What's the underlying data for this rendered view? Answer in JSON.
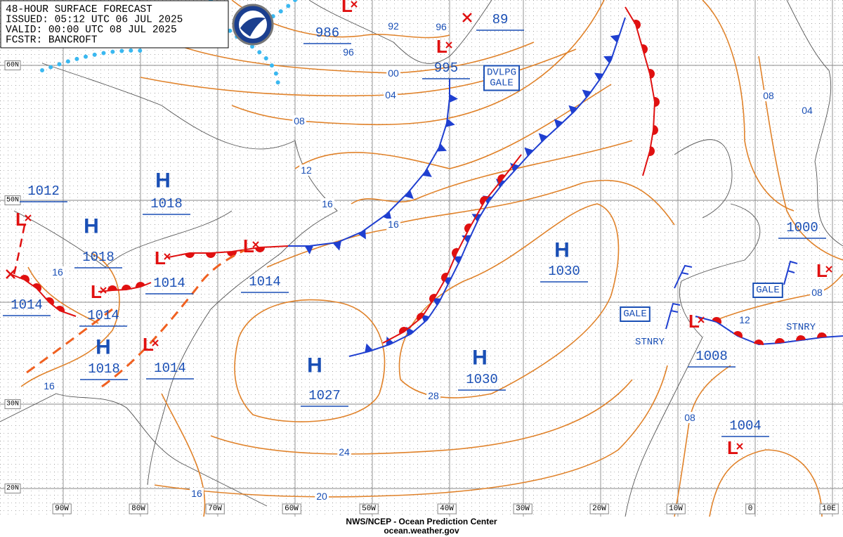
{
  "header": {
    "lines": [
      "48-HOUR SURFACE FORECAST",
      "ISSUED: 05:12 UTC 06 JUL 2025",
      "VALID:  00:00 UTC 08 JUL 2025",
      "FCSTR: BANCROFT"
    ]
  },
  "footer": {
    "lines": [
      "NWS/NCEP - Ocean Prediction Center",
      "ocean.weather.gov"
    ]
  },
  "grid": {
    "longitude_labels": [
      "90W",
      "80W",
      "70W",
      "60W",
      "50W",
      "40W",
      "30W",
      "20W",
      "10W",
      "0",
      "10E"
    ],
    "latitude_labels": [
      "60N",
      "50N",
      "30N",
      "20N"
    ]
  },
  "highs": [
    {
      "symbol": "H",
      "pressure": "1018"
    },
    {
      "symbol": "H",
      "pressure": "1018"
    },
    {
      "symbol": "H",
      "pressure": "1018"
    },
    {
      "symbol": "H",
      "pressure": "1027"
    },
    {
      "symbol": "H",
      "pressure": "1030"
    },
    {
      "symbol": "H",
      "pressure": "1030"
    }
  ],
  "lows": [
    {
      "symbol": "L",
      "pressure": "986"
    },
    {
      "symbol": "L",
      "pressure": "995"
    },
    {
      "pressure": "89"
    },
    {
      "symbol": "L",
      "pressure": "1012"
    },
    {
      "pressure": "1014"
    },
    {
      "symbol": "L",
      "pressure": "1014"
    },
    {
      "symbol": "L",
      "pressure": "1014"
    },
    {
      "symbol": "L",
      "pressure": "1014"
    },
    {
      "symbol": "L",
      "pressure": "1014"
    },
    {
      "symbol": "L",
      "pressure": "1008"
    },
    {
      "symbol": "L",
      "pressure": "1004"
    },
    {
      "symbol": "L",
      "pressure": "1000"
    }
  ],
  "isobar_labels": [
    "96",
    "92",
    "96",
    "00",
    "04",
    "08",
    "12",
    "16",
    "16",
    "16",
    "16",
    "16",
    "20",
    "24",
    "28",
    "08",
    "04",
    "08",
    "12",
    "08"
  ],
  "warnings": [
    {
      "lines": [
        "DVLPG",
        "GALE"
      ]
    },
    {
      "lines": [
        "GALE"
      ]
    },
    {
      "lines": [
        "GALE"
      ]
    }
  ],
  "front_labels": [
    "STNRY",
    "STNRY"
  ]
}
